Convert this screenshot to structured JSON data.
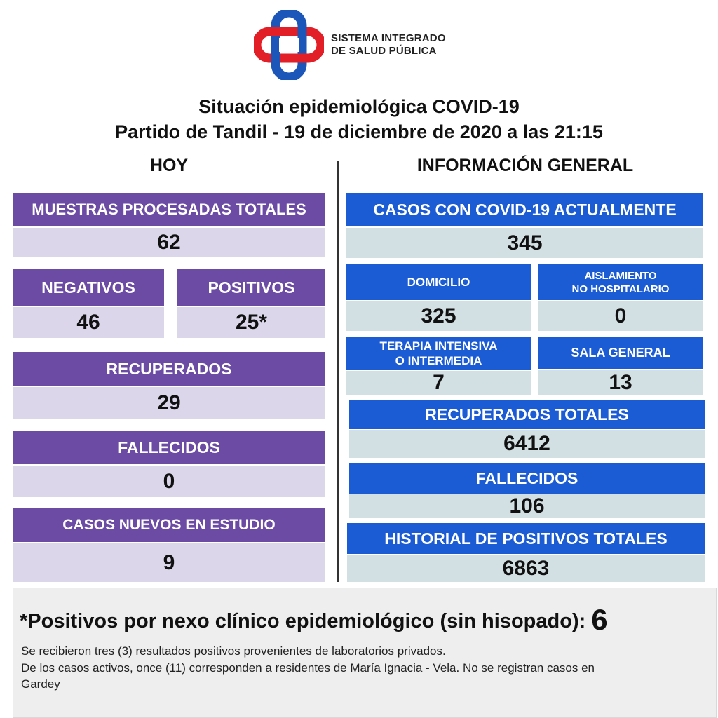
{
  "header": {
    "logo_line1": "SISTEMA INTEGRADO",
    "logo_line2": "DE SALUD PÚBLICA",
    "title_line1": "Situación epidemiológica COVID-19",
    "title_line2": "Partido de Tandil - 19 de diciembre de 2020 a las 21:15",
    "colors": {
      "logo_red": "#e21f26",
      "logo_blue": "#1b56b8"
    }
  },
  "hoy": {
    "heading": "HOY",
    "muestras": {
      "label": "MUESTRAS PROCESADAS TOTALES",
      "value": "62"
    },
    "negativos": {
      "label": "NEGATIVOS",
      "value": "46"
    },
    "positivos": {
      "label": "POSITIVOS",
      "value": "25*"
    },
    "recuperados": {
      "label": "RECUPERADOS",
      "value": "29"
    },
    "fallecidos": {
      "label": "FALLECIDOS",
      "value": "0"
    },
    "casos_nuevos": {
      "label": "CASOS NUEVOS EN ESTUDIO",
      "value": "9"
    },
    "colors": {
      "header": "#6b4ba3",
      "value_bg": "#dcd6ea"
    }
  },
  "general": {
    "heading": "INFORMACIÓN GENERAL",
    "casos_actuales": {
      "label": "CASOS CON COVID-19 ACTUALMENTE",
      "value": "345"
    },
    "domicilio": {
      "label": "DOMICILIO",
      "value": "325"
    },
    "aislamiento": {
      "label_line1": "AISLAMIENTO",
      "label_line2": "NO HOSPITALARIO",
      "value": "0"
    },
    "terapia": {
      "label_line1": "TERAPIA INTENSIVA",
      "label_line2": "O INTERMEDIA",
      "value": "7"
    },
    "sala_general": {
      "label": "SALA GENERAL",
      "value": "13"
    },
    "recuperados_totales": {
      "label": "RECUPERADOS TOTALES",
      "value": "6412"
    },
    "fallecidos": {
      "label": "FALLECIDOS",
      "value": "106"
    },
    "historial": {
      "label": "HISTORIAL DE POSITIVOS TOTALES",
      "value": "6863"
    },
    "colors": {
      "header": "#1b5bd4",
      "value_bg": "#d3e0e3"
    }
  },
  "footer": {
    "footnote_label": "*Positivos por nexo clínico epidemiológico (sin hisopado):",
    "footnote_value": "6",
    "line1": "Se recibieron tres (3) resultados positivos provenientes de laboratorios privados.",
    "line2": "De los casos activos, once (11) corresponden a residentes de María Ignacia - Vela. No se registran casos en",
    "line3": "Gardey"
  }
}
